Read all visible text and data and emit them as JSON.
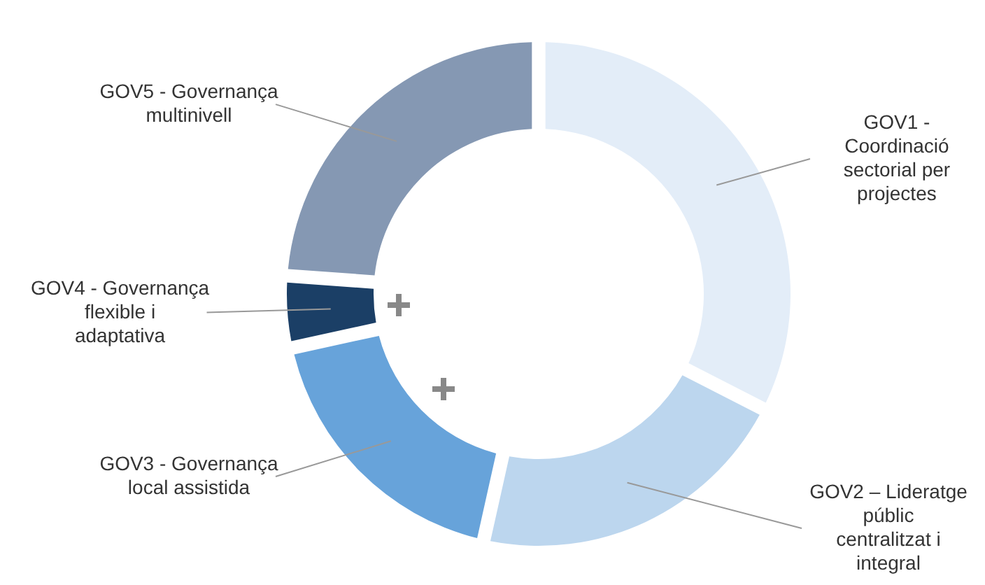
{
  "chart_data": {
    "type": "donut",
    "categories": [
      "GOV1 - Coordinació sectorial per projectes",
      "GOV2 – Lideratge públic centralitzat i integral",
      "GOV3 - Governança local assistida",
      "GOV4 - Governança flexible i adaptativa",
      "GOV5 - Governança multinivell"
    ],
    "values": [
      33,
      21,
      18,
      4,
      24
    ],
    "colors": [
      "#e3edf8",
      "#bcd6ee",
      "#67a3da",
      "#1b3f66",
      "#8598b3"
    ]
  }
}
